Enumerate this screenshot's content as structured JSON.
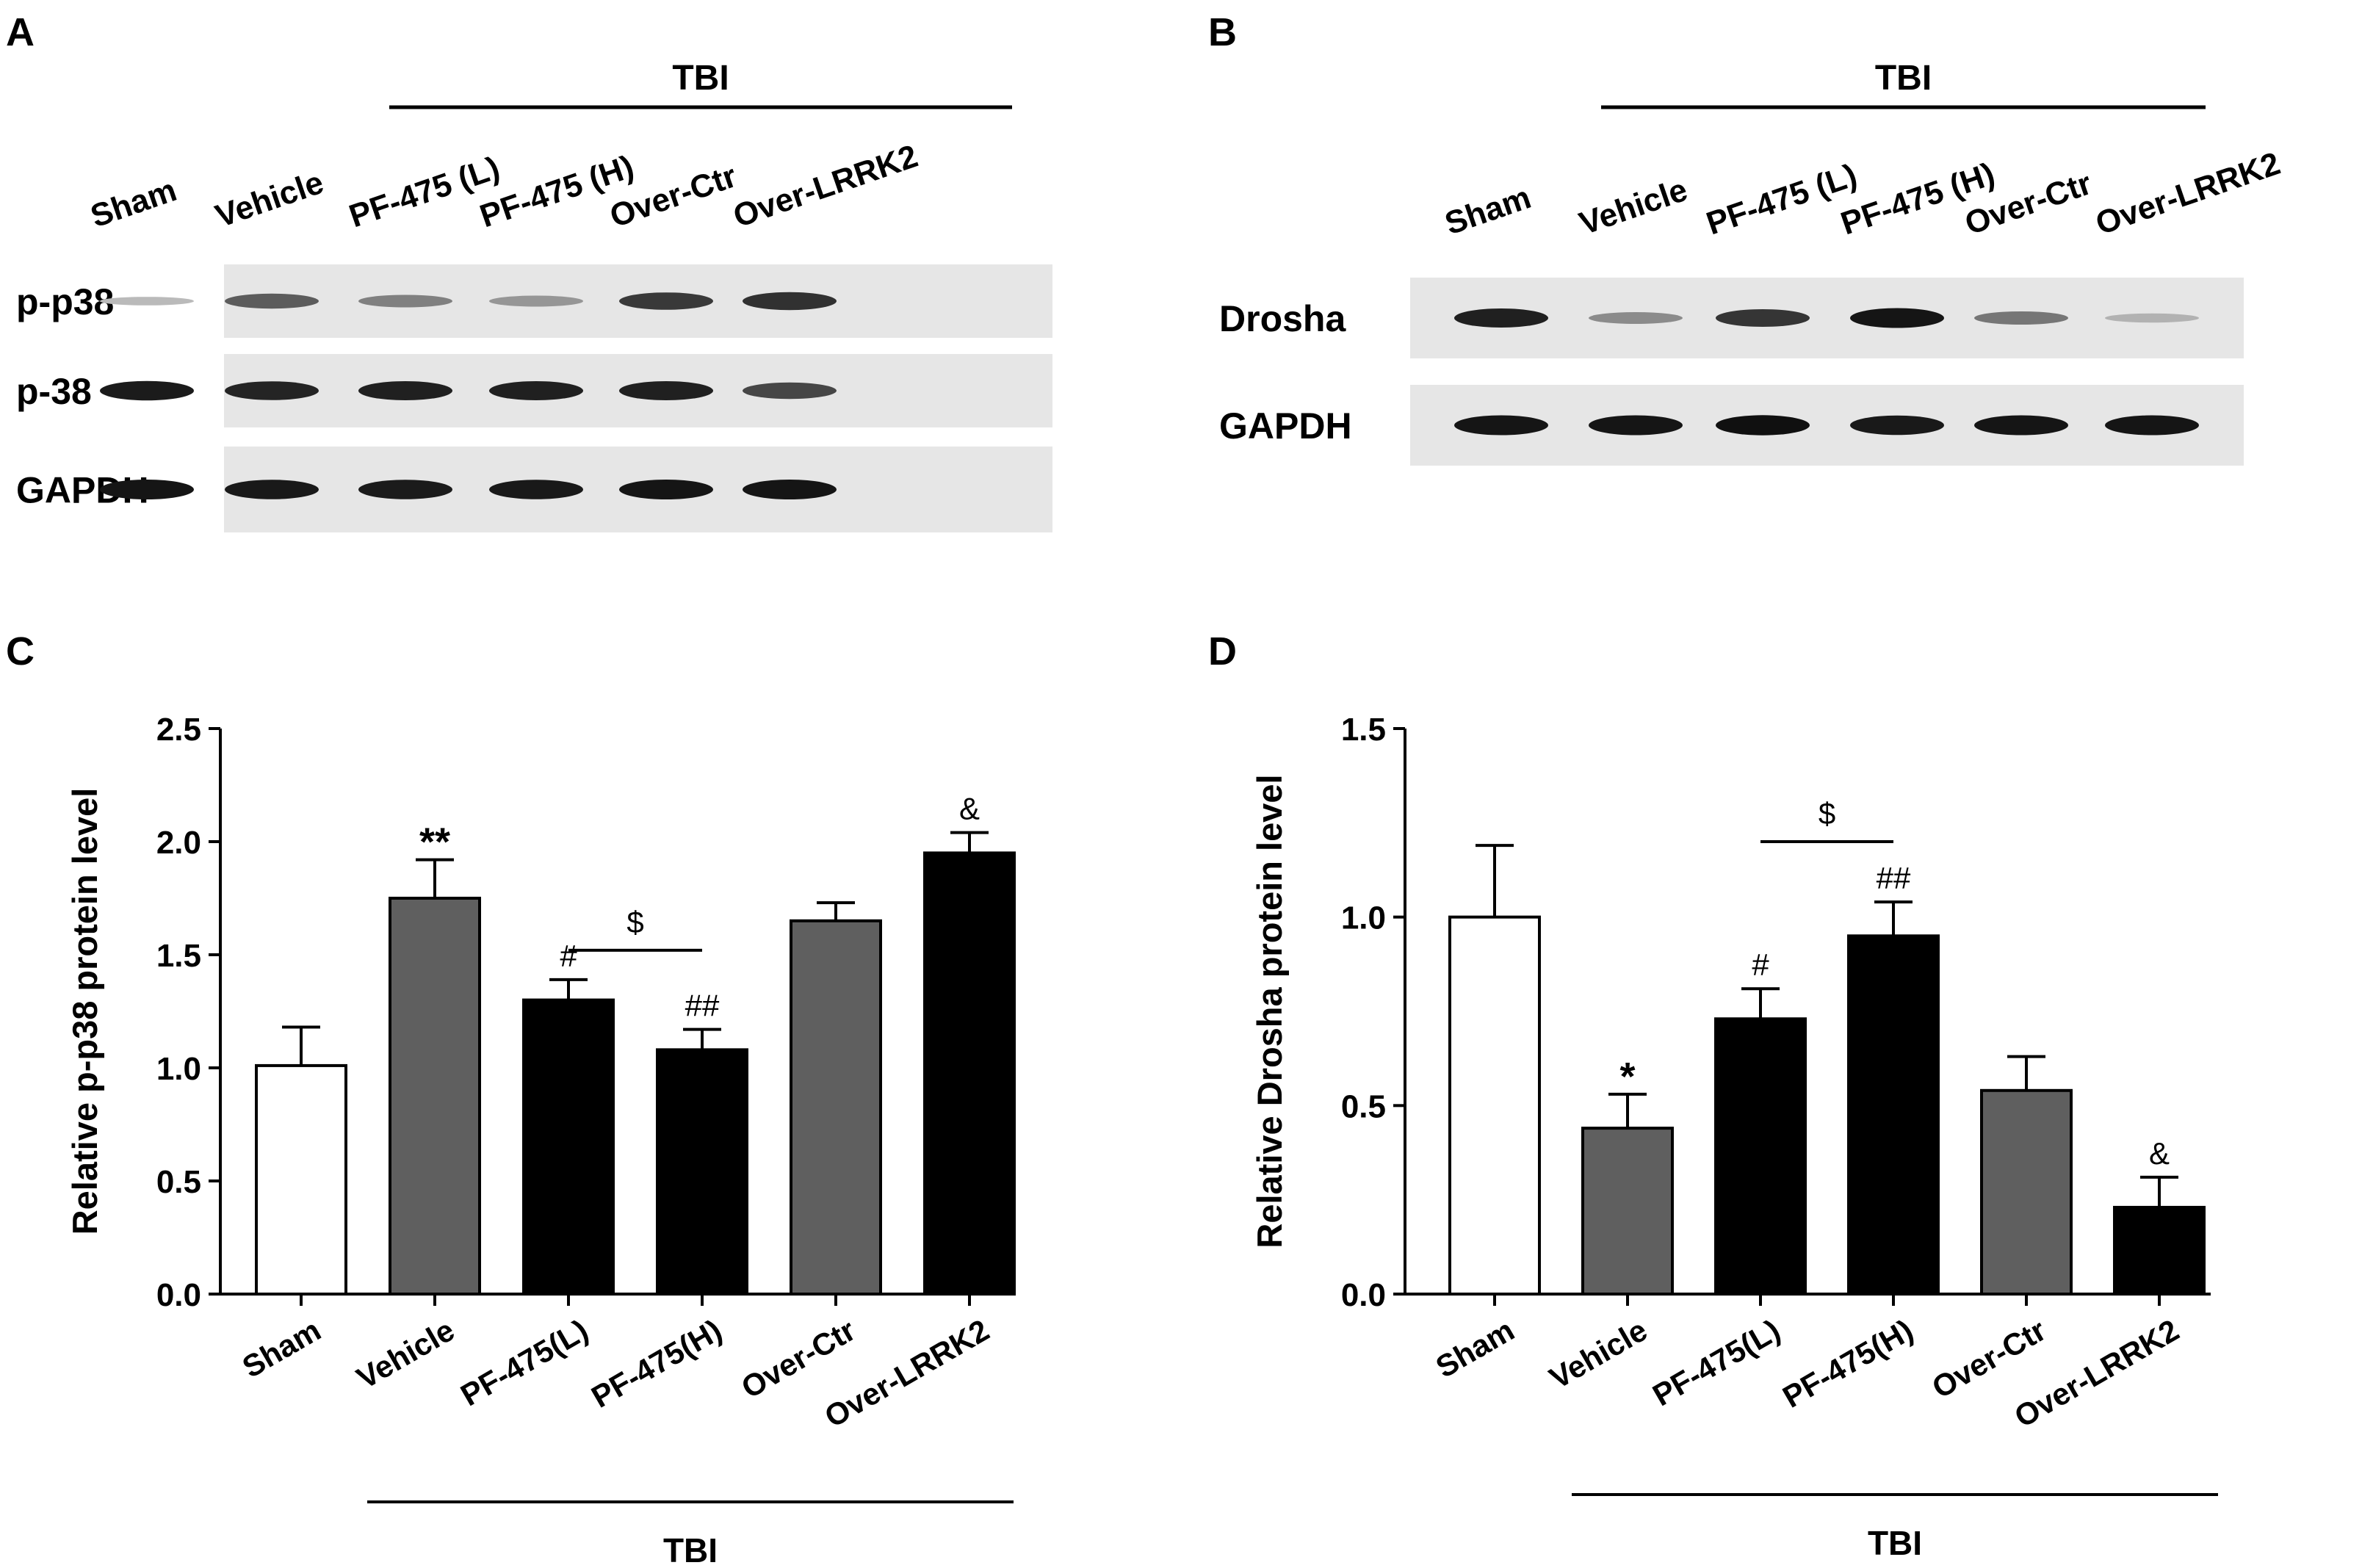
{
  "panels": {
    "a": "A",
    "b": "B",
    "c": "C",
    "d": "D"
  },
  "group_label": "TBI",
  "blots": [
    {
      "lanes": [
        "Sham",
        "Vehicle",
        "PF-475 (L)",
        "PF-475 (H)",
        "Over-Ctr",
        "Over-LRRK2"
      ],
      "rows": [
        {
          "name": "p-p38",
          "intensity": [
            0.18,
            0.62,
            0.45,
            0.35,
            0.78,
            0.82
          ]
        },
        {
          "name": "p-38",
          "intensity": [
            0.92,
            0.88,
            0.9,
            0.9,
            0.9,
            0.72
          ]
        },
        {
          "name": "GAPDH",
          "intensity": [
            0.95,
            0.93,
            0.92,
            0.93,
            0.95,
            0.95
          ]
        }
      ]
    },
    {
      "lanes": [
        "Sham",
        "Vehicle",
        "PF-475 (L)",
        "PF-475 (H)",
        "Over-Ctr",
        "Over-LRRK2"
      ],
      "rows": [
        {
          "name": "Drosha",
          "intensity": [
            0.9,
            0.4,
            0.8,
            0.95,
            0.5,
            0.22
          ]
        },
        {
          "name": "GAPDH",
          "intensity": [
            0.95,
            0.95,
            0.97,
            0.93,
            0.95,
            0.95
          ]
        }
      ]
    }
  ],
  "chart_data": [
    {
      "type": "bar",
      "ylabel": "Relative p-p38 protein level",
      "categories": [
        "Sham",
        "Vehicle",
        "PF-475(L)",
        "PF-475(H)",
        "Over-Ctr",
        "Over-LRRK2"
      ],
      "values": [
        1.01,
        1.75,
        1.3,
        1.08,
        1.65,
        1.95
      ],
      "errors": [
        0.17,
        0.17,
        0.09,
        0.09,
        0.08,
        0.09
      ],
      "colors": [
        "#ffffff",
        "#5f5f5f",
        "#000000",
        "#000000",
        "#5f5f5f",
        "#000000"
      ],
      "marks": [
        "",
        "**",
        "#",
        "##",
        "",
        "&"
      ],
      "ylim": [
        0,
        2.5
      ],
      "yticks": [
        "0.0",
        "0.5",
        "1.0",
        "1.5",
        "2.0",
        "2.5"
      ],
      "bracket": {
        "from": "PF-475(L)",
        "to": "PF-475(H)",
        "value": 1.52,
        "mark": "$"
      },
      "group": {
        "label": "TBI",
        "from": "Vehicle",
        "to": "Over-LRRK2"
      }
    },
    {
      "type": "bar",
      "ylabel": "Relative Drosha protein level",
      "categories": [
        "Sham",
        "Vehicle",
        "PF-475(L)",
        "PF-475(H)",
        "Over-Ctr",
        "Over-LRRK2"
      ],
      "values": [
        1.0,
        0.44,
        0.73,
        0.95,
        0.54,
        0.23
      ],
      "errors": [
        0.19,
        0.09,
        0.08,
        0.09,
        0.09,
        0.08
      ],
      "colors": [
        "#ffffff",
        "#5f5f5f",
        "#000000",
        "#000000",
        "#5f5f5f",
        "#000000"
      ],
      "marks": [
        "",
        "*",
        "#",
        "##",
        "",
        "&"
      ],
      "ylim": [
        0,
        1.5
      ],
      "yticks": [
        "0.0",
        "0.5",
        "1.0",
        "1.5"
      ],
      "bracket": {
        "from": "PF-475(L)",
        "to": "PF-475(H)",
        "value": 1.2,
        "mark": "$"
      },
      "group": {
        "label": "TBI",
        "from": "Vehicle",
        "to": "Over-LRRK2"
      }
    }
  ]
}
